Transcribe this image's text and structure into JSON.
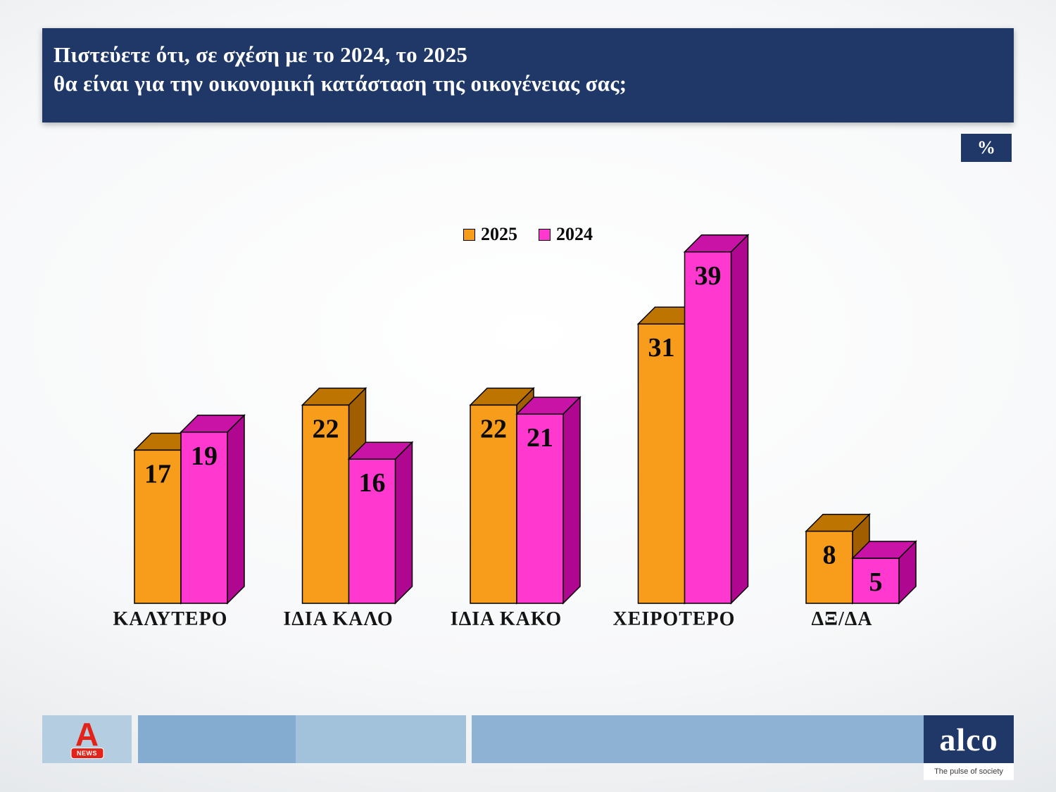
{
  "header": {
    "title_line1": "Πιστεύετε ότι, σε σχέση με το 2024, το 2025",
    "title_line2": "θα είναι για την οικονομική κατάσταση της οικογένειας σας;",
    "unit_badge": "%"
  },
  "chart_data": {
    "type": "bar",
    "style": "3d-clustered-columns",
    "title": "",
    "categories": [
      "ΚΑΛΥΤΕΡΟ",
      "ΙΔΙΑ ΚΑΛΟ",
      "ΙΔΙΑ ΚΑΚΟ",
      "ΧΕΙΡΟΤΕΡΟ",
      "ΔΞ/ΔΑ"
    ],
    "series": [
      {
        "name": "2025",
        "values": [
          17,
          22,
          22,
          31,
          8
        ],
        "color": "#F89C1C",
        "top_color": "#BE7400",
        "side_color": "#A05E00"
      },
      {
        "name": "2024",
        "values": [
          19,
          16,
          21,
          39,
          5
        ],
        "color": "#FF38CF",
        "top_color": "#C913A6",
        "side_color": "#AF0790"
      }
    ],
    "unit": "%",
    "ylim": [
      0,
      40
    ],
    "legend_position": "top-center",
    "value_labels": true,
    "grid": false
  },
  "footer": {
    "alpha_letter": "A",
    "alpha_news_label": "NEWS",
    "alco_wordmark": "alco",
    "alco_tagline": "The pulse of society"
  },
  "colors": {
    "header_navy": "#1F3868",
    "alpha_red": "#E2231A",
    "footer_bars": [
      "#B5CDE1",
      "#84ABD0",
      "#A2C2DB",
      "#8DB2D4"
    ],
    "value_label": "#0A0A0A"
  }
}
